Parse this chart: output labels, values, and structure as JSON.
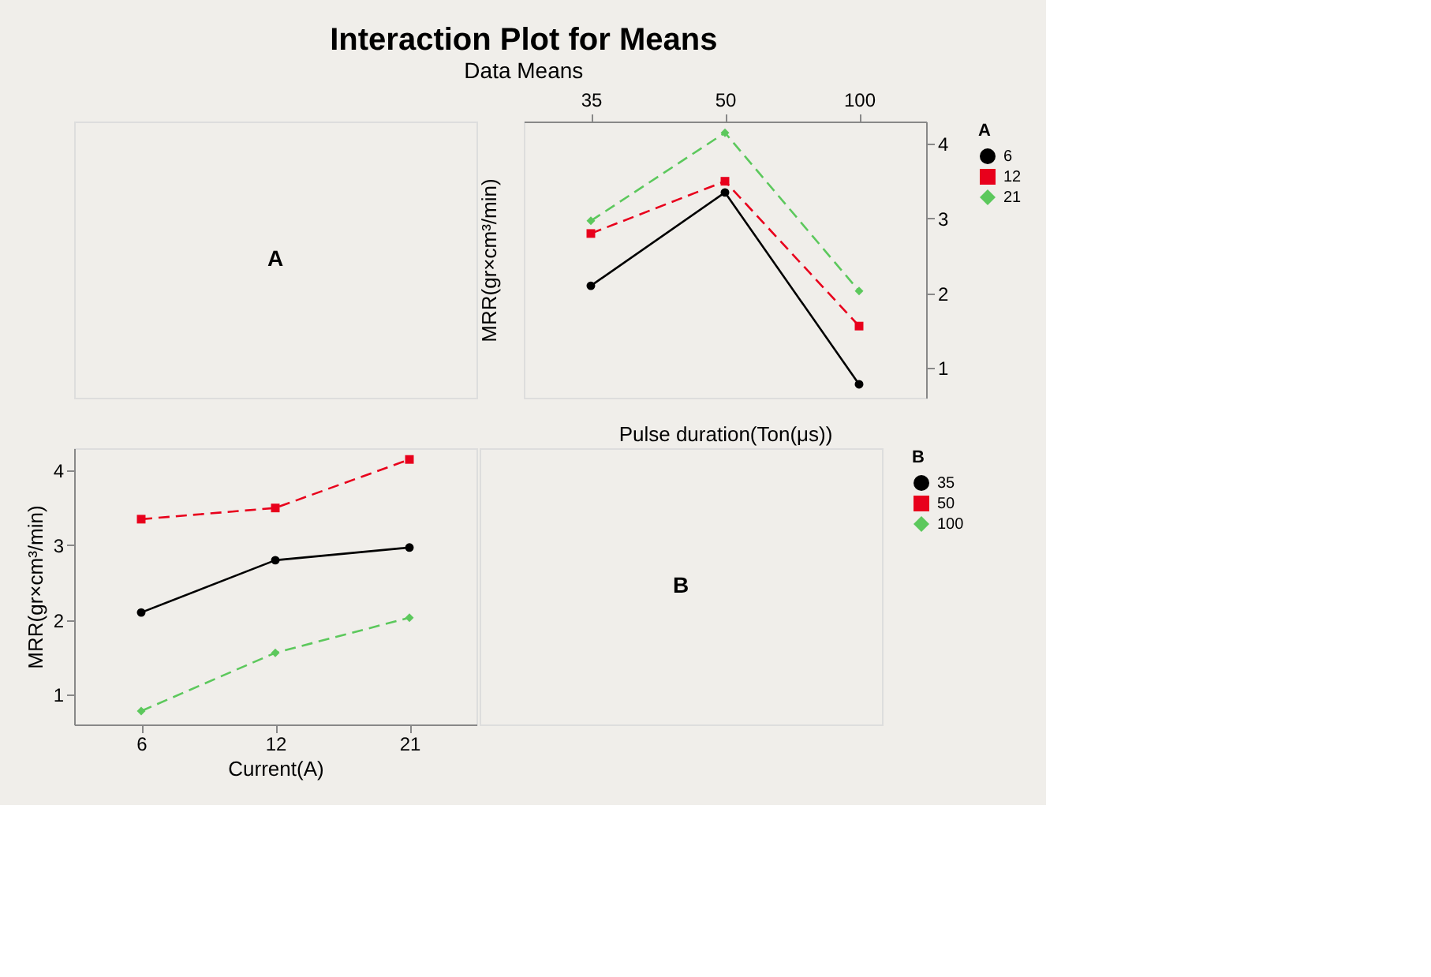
{
  "chart_data": [
    {
      "type": "other",
      "title": "Interaction Plot for Means",
      "subtitle": "Data Means",
      "annotations": [
        "A"
      ]
    },
    {
      "type": "line",
      "categories": [
        "35",
        "50",
        "100"
      ],
      "xlabel": "Pulse duration(Ton(μs))",
      "ylabel": "MRR(gr×cm³/min)",
      "legend_title": "A",
      "legend": "right",
      "grid": false,
      "ylim": [
        0.6,
        4.3
      ],
      "yticks": [
        1,
        2,
        3,
        4
      ],
      "series": [
        {
          "name": "6",
          "color": "#000000",
          "marker": "circle",
          "line_style": "solid",
          "values": [
            2.1,
            3.35,
            0.78
          ]
        },
        {
          "name": "12",
          "color": "#e8001c",
          "marker": "square",
          "line_style": "dashed",
          "values": [
            2.8,
            3.5,
            1.56
          ]
        },
        {
          "name": "21",
          "color": "#5cc85c",
          "marker": "diamond",
          "line_style": "dashed",
          "values": [
            2.97,
            4.15,
            2.03
          ]
        }
      ]
    },
    {
      "type": "line",
      "categories": [
        "6",
        "12",
        "21"
      ],
      "xlabel": "Current(A)",
      "ylabel": "MRR(gr×cm³/min)",
      "legend_title": "B",
      "legend": "right",
      "grid": false,
      "ylim": [
        0.6,
        4.3
      ],
      "yticks": [
        1,
        2,
        3,
        4
      ],
      "series": [
        {
          "name": "35",
          "color": "#000000",
          "marker": "circle",
          "line_style": "solid",
          "values": [
            2.1,
            2.8,
            2.97
          ]
        },
        {
          "name": "50",
          "color": "#e8001c",
          "marker": "square",
          "line_style": "dashed",
          "values": [
            3.35,
            3.5,
            4.15
          ]
        },
        {
          "name": "100",
          "color": "#5cc85c",
          "marker": "diamond",
          "line_style": "dashed",
          "values": [
            0.78,
            1.56,
            2.03
          ]
        }
      ]
    },
    {
      "type": "other",
      "annotations": [
        "B"
      ]
    }
  ]
}
